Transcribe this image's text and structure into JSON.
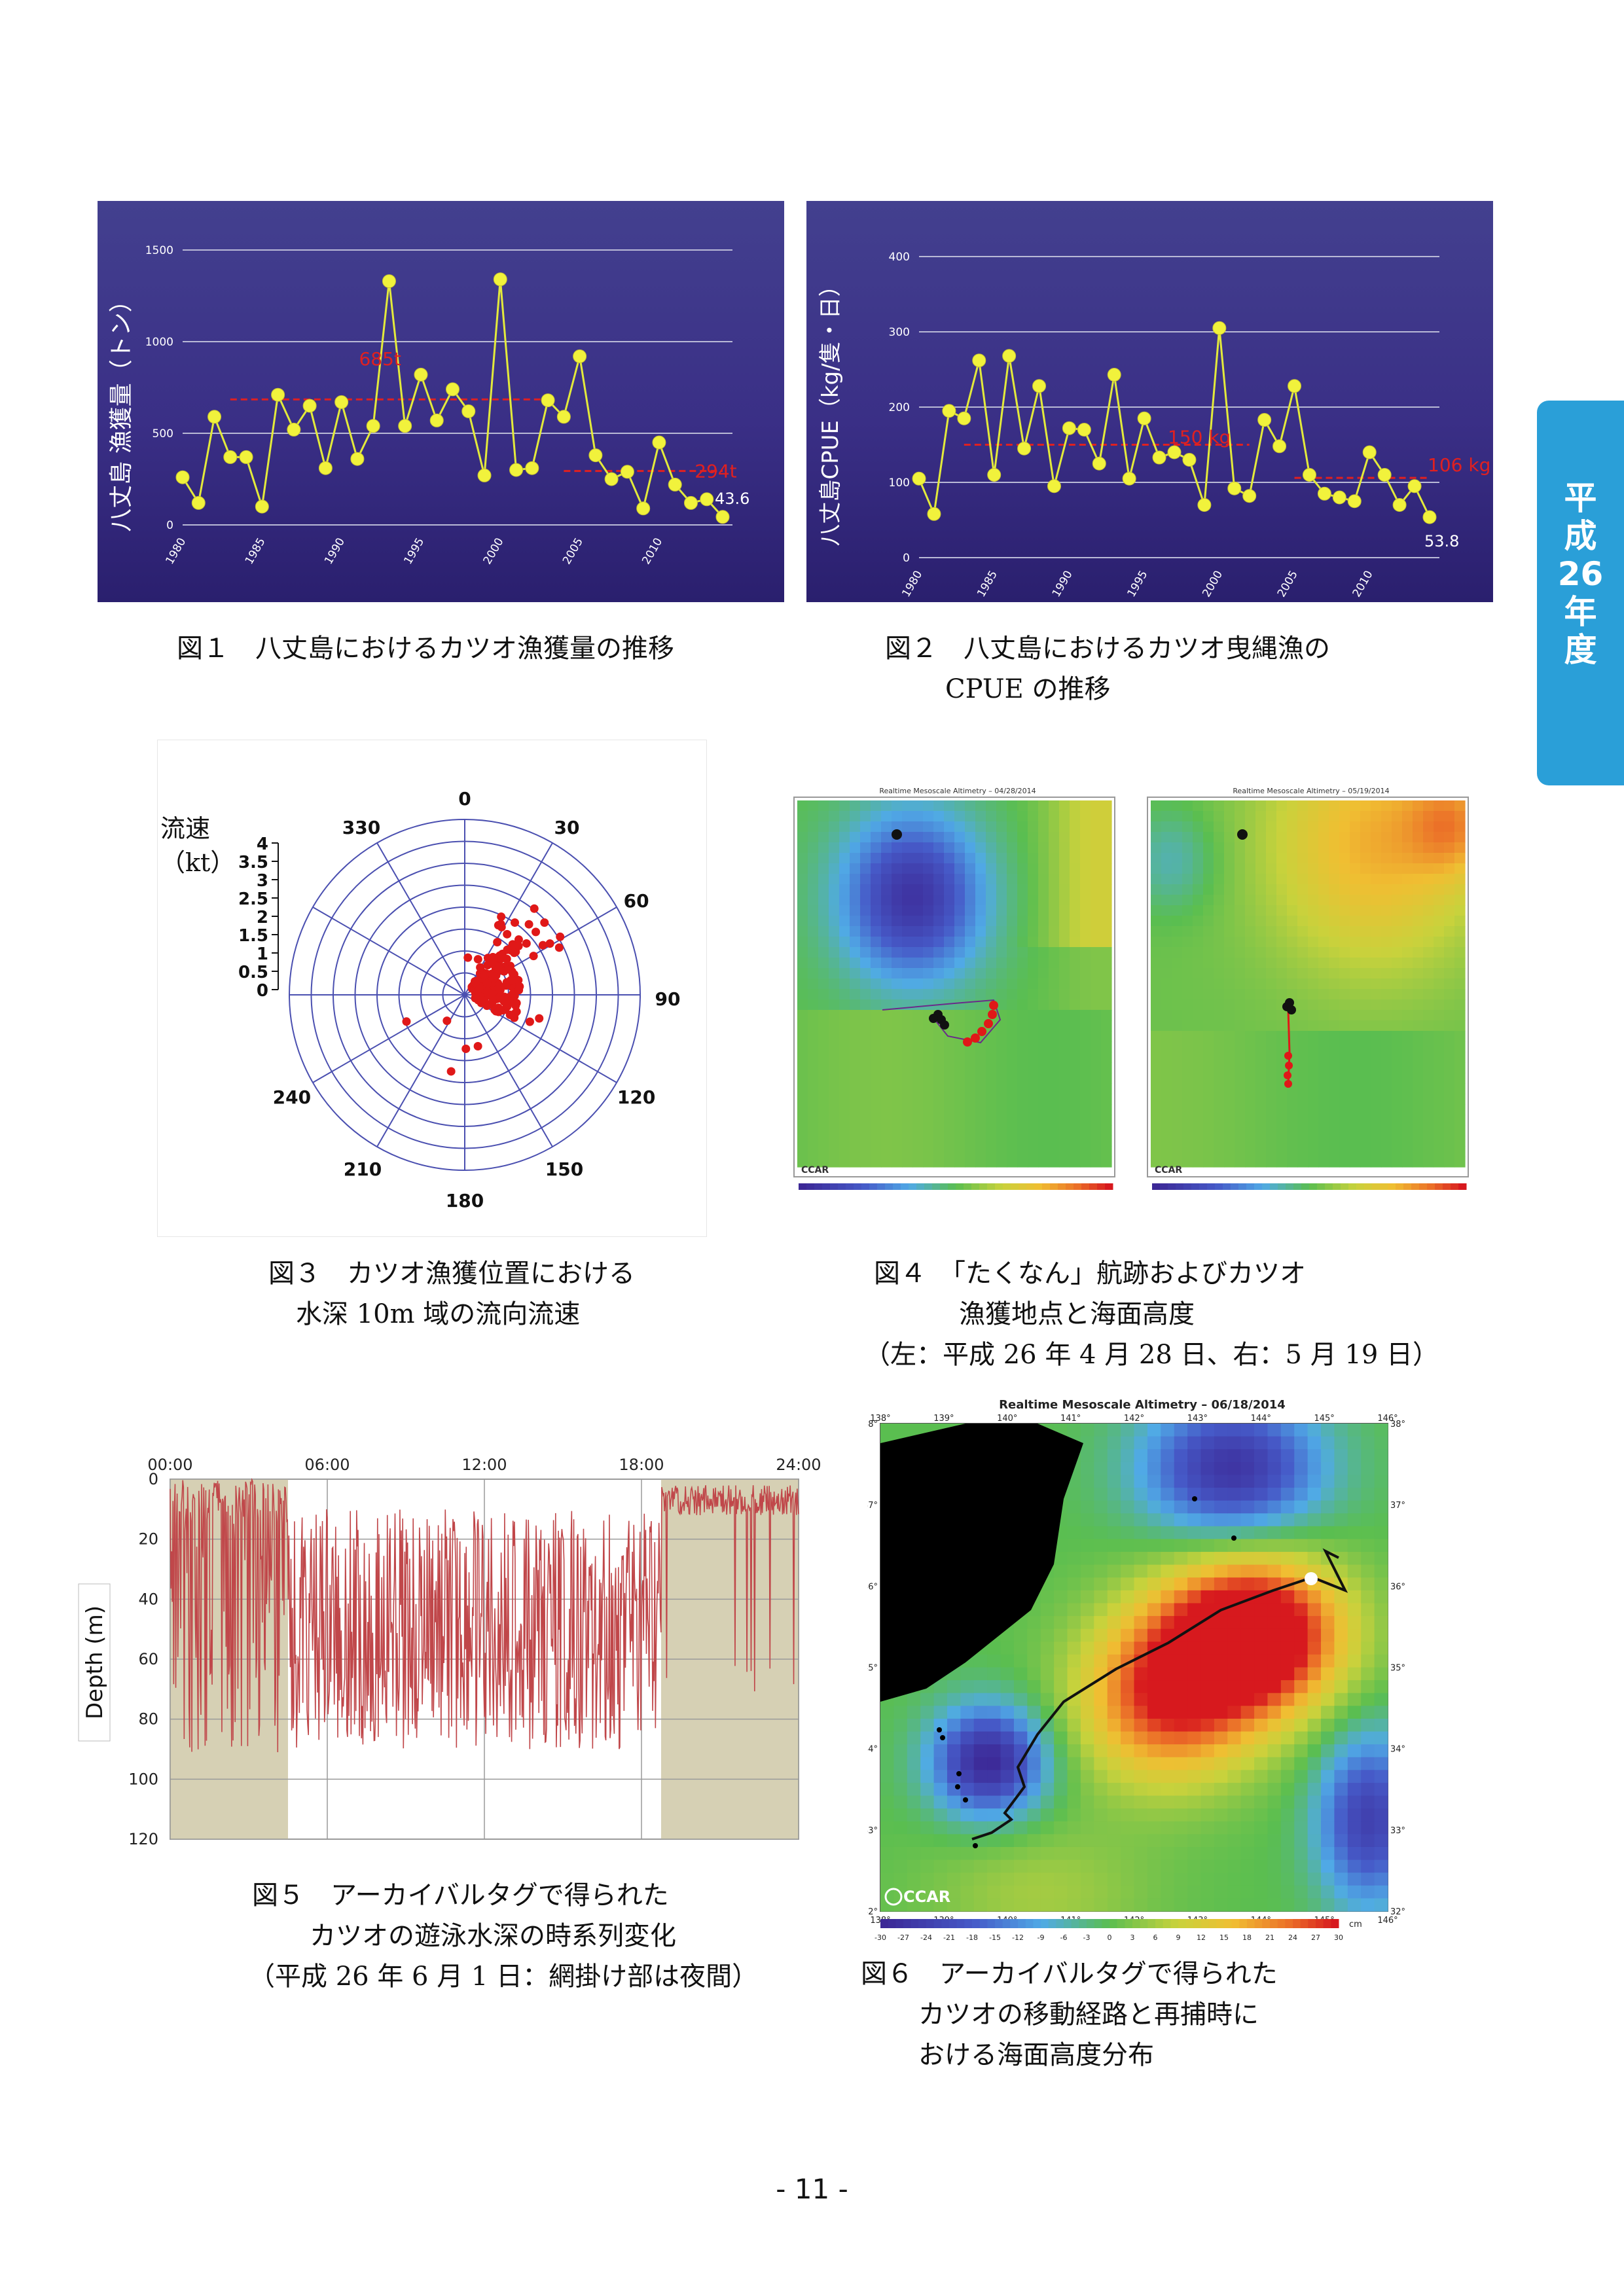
{
  "figures": {
    "fig1": {
      "caption": "図１　八丈島におけるカツオ漁獲量の推移",
      "chart_data": {
        "type": "line",
        "ylabel": "八丈島 漁獲量（トン）",
        "ylim": [
          0,
          1500
        ],
        "yticks": [
          "0",
          "500",
          "1000",
          "1500"
        ],
        "xticks": [
          "1980",
          "1985",
          "1990",
          "1995",
          "2000",
          "2005",
          "2010"
        ],
        "x": [
          1980,
          1981,
          1982,
          1983,
          1984,
          1985,
          1986,
          1987,
          1988,
          1989,
          1990,
          1991,
          1992,
          1993,
          1994,
          1995,
          1996,
          1997,
          1998,
          1999,
          2000,
          2001,
          2002,
          2003,
          2004,
          2005,
          2006,
          2007,
          2008,
          2009,
          2010,
          2011,
          2012,
          2013,
          2014
        ],
        "values": [
          260,
          120,
          590,
          370,
          370,
          100,
          710,
          520,
          650,
          310,
          670,
          360,
          540,
          1330,
          540,
          820,
          570,
          740,
          620,
          270,
          1340,
          300,
          310,
          680,
          590,
          920,
          380,
          250,
          290,
          90,
          450,
          220,
          120,
          140,
          43.6
        ],
        "annotations": [
          {
            "text": "685t",
            "x": 1993,
            "y": 685
          },
          {
            "text": "294t",
            "x": 2011,
            "y": 294
          },
          {
            "text": "43.6",
            "x": 2014,
            "y": 43.6
          }
        ],
        "avg_lines": [
          {
            "x": [
              1983,
              2003
            ],
            "y": [
              685,
              685
            ]
          },
          {
            "x": [
              2004,
              2014
            ],
            "y": [
              294,
              294
            ]
          }
        ]
      }
    },
    "fig2": {
      "caption_line1": "図２　八丈島におけるカツオ曳縄漁の",
      "caption_line2": "CPUE の推移",
      "chart_data": {
        "type": "line",
        "ylabel": "八丈島CPUE（kg/隻・日）",
        "ylim": [
          0,
          400
        ],
        "yticks": [
          "0",
          "100",
          "200",
          "300",
          "400"
        ],
        "xticks": [
          "1980",
          "1985",
          "1990",
          "1995",
          "2000",
          "2005",
          "2010"
        ],
        "x": [
          1980,
          1981,
          1982,
          1983,
          1984,
          1985,
          1986,
          1987,
          1988,
          1989,
          1990,
          1991,
          1992,
          1993,
          1994,
          1995,
          1996,
          1997,
          1998,
          1999,
          2000,
          2001,
          2002,
          2003,
          2004,
          2005,
          2006,
          2007,
          2008,
          2009,
          2010,
          2011,
          2012,
          2013,
          2014
        ],
        "values": [
          105,
          58,
          195,
          185,
          262,
          110,
          268,
          145,
          228,
          95,
          172,
          170,
          125,
          243,
          105,
          185,
          133,
          140,
          130,
          70,
          305,
          92,
          82,
          183,
          148,
          228,
          110,
          85,
          80,
          75,
          140,
          110,
          70,
          95,
          53.8
        ],
        "annotations": [
          {
            "text": "150 kg",
            "x": 1997,
            "y": 150
          },
          {
            "text": "106 kg",
            "x": 2013,
            "y": 106
          },
          {
            "text": "53.8",
            "x": 2014,
            "y": 53.8
          }
        ]
      }
    },
    "fig3": {
      "caption_line1": "図３　カツオ漁獲位置における",
      "caption_line2": "水深 10m 域の流向流速",
      "speed_label_line1": "流速",
      "speed_label_line2": "（kt）",
      "speed_ticks": [
        "0",
        "0.5",
        "1",
        "1.5",
        "2",
        "2.5",
        "3",
        "3.5",
        "4"
      ],
      "angle_labels": [
        "0",
        "30",
        "60",
        "90",
        "120",
        "150",
        "180",
        "210",
        "240",
        "330"
      ]
    },
    "fig4": {
      "caption_line1": "図４　「たくなん」航跡およびカツオ",
      "caption_line2": "漁獲地点と海面高度",
      "caption_line3": "（左：平成 26 年 4 月 28 日、右：5 月 19 日）",
      "logo": "CCAR",
      "map_left_title": "Realtime Mesoscale Altimetry – 04/28/2014",
      "map_right_title": "Realtime Mesoscale Altimetry – 05/19/2014"
    },
    "fig5": {
      "caption_line1": "図５　アーカイバルタグで得られた",
      "caption_line2": "カツオの遊泳水深の時系列変化",
      "caption_line3": "（平成 26 年 6 月 1 日：網掛け部は夜間）",
      "chart_data": {
        "type": "line",
        "ylabel": "Depth (m)",
        "ylim": [
          0,
          120
        ],
        "yticks": [
          "0",
          "20",
          "40",
          "60",
          "80",
          "100",
          "120"
        ],
        "xticks": [
          "00:00",
          "06:00",
          "12:00",
          "18:00",
          "24:00"
        ],
        "night_shading": [
          [
            "00:00",
            "04:30"
          ],
          [
            "18:45",
            "24:00"
          ]
        ]
      }
    },
    "fig6": {
      "caption_line1": "図６　アーカイバルタグで得られた",
      "caption_line2": "カツオの移動経路と再捕時に",
      "caption_line3": "おける海面高度分布",
      "map_title": "Realtime Mesoscale Altimetry – 06/18/2014",
      "logo": "CCAR",
      "lon_ticks": [
        "138°",
        "139°",
        "140°",
        "141°",
        "142°",
        "143°",
        "144°",
        "145°",
        "146°"
      ],
      "lat_ticks": [
        "38°",
        "37°",
        "36°",
        "35°",
        "34°",
        "33°",
        "32°"
      ],
      "colorbar_ticks": [
        "-30",
        "-27",
        "-24",
        "-21",
        "-18",
        "-15",
        "-12",
        "-9",
        "-6",
        "-3",
        "0",
        "3",
        "6",
        "9",
        "12",
        "15",
        "18",
        "21",
        "24",
        "27",
        "30"
      ],
      "colorbar_unit": "cm"
    }
  },
  "side_tab": {
    "line1": "平",
    "line2": "成",
    "line3": "26",
    "line4": "年",
    "line5": "度"
  },
  "page_number": "- 11 -"
}
